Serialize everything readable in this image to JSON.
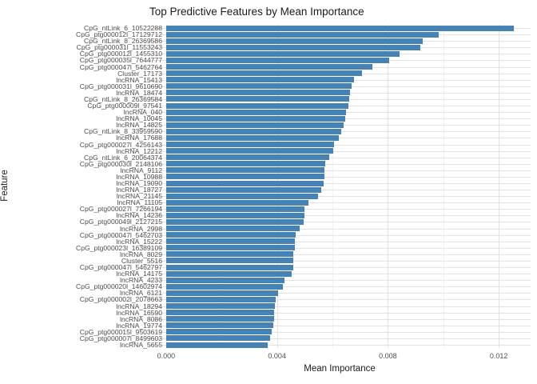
{
  "chart_data": {
    "type": "bar",
    "orientation": "horizontal",
    "title": "Top Predictive Features by Mean Importance",
    "xlabel": "Mean Importance",
    "ylabel": "Feature",
    "legend": "none",
    "grid": "on",
    "xlim": [
      -0.00063,
      0.01315
    ],
    "x_major_ticks": [
      {
        "value": 0.0,
        "label": "0.000"
      },
      {
        "value": 0.004,
        "label": "0.004"
      },
      {
        "value": 0.008,
        "label": "0.008"
      },
      {
        "value": 0.012,
        "label": "0.012"
      }
    ],
    "x_minor_ticks": [
      0.002,
      0.006,
      0.01
    ],
    "bar_color": "#4682b4",
    "grid_major_color": "#e3e3e3",
    "grid_minor_color": "#f1f1f1",
    "categories": [
      "CpG_ntLink_6_10522288",
      "CpG_ptg000012l_17129712",
      "CpG_ntLink_8_26369586",
      "CpG_ptg000031l_11553243",
      "CpG_ptg000012l_1455310",
      "CpG_ptg000035l_7644777",
      "CpG_ptg000047l_5462764",
      "Cluster_17173",
      "lncRNA_15413",
      "CpG_ptg000031l_9610690",
      "lncRNA_18474",
      "CpG_ntLink_8_26369584",
      "CpG_ptg000009l_97541",
      "lncRNA_040",
      "lncRNA_10045",
      "lncRNA_14825",
      "CpG_ntLink_8_33959590",
      "lncRNA_17688",
      "CpG_ptg000027l_4256143",
      "lncRNA_12212",
      "CpG_ntLink_6_20064374",
      "CpG_ptg000030l_2148106",
      "lncRNA_9112",
      "lncRNA_10988",
      "lncRNA_19090",
      "lncRNA_18727",
      "lncRNA_21145",
      "lncRNA_11105",
      "CpG_ptg000027l_7266194",
      "lncRNA_14236",
      "CpG_ptg000049l_2127215",
      "lncRNA_2998",
      "CpG_ptg000047l_5462703",
      "lncRNA_15222",
      "CpG_ptg000023l_16389109",
      "lncRNA_8029",
      "Cluster_5516",
      "CpG_ptg000047l_5462797",
      "lncRNA_14175",
      "lncRNA_4233",
      "CpG_ptg000020l_14602974",
      "lncRNA_6121",
      "CpG_ptg000002l_2078663",
      "lncRNA_18294",
      "lncRNA_16590",
      "lncRNA_8086",
      "lncRNA_19774",
      "CpG_ptg000015l_9503619",
      "CpG_ptg000007l_8499603",
      "lncRNA_5655"
    ],
    "values": [
      0.01254,
      0.00983,
      0.00926,
      0.00917,
      0.00842,
      0.00805,
      0.00744,
      0.00707,
      0.00678,
      0.00669,
      0.00664,
      0.00661,
      0.00659,
      0.0065,
      0.00645,
      0.00639,
      0.00631,
      0.00624,
      0.00606,
      0.00602,
      0.00589,
      0.00573,
      0.0057,
      0.0057,
      0.00568,
      0.00561,
      0.00548,
      0.00513,
      0.00499,
      0.00498,
      0.00496,
      0.00482,
      0.00468,
      0.00466,
      0.00464,
      0.0046,
      0.00459,
      0.00459,
      0.00454,
      0.00428,
      0.00421,
      0.00404,
      0.00395,
      0.00393,
      0.0039,
      0.00389,
      0.00388,
      0.00381,
      0.00376,
      0.00366
    ]
  }
}
